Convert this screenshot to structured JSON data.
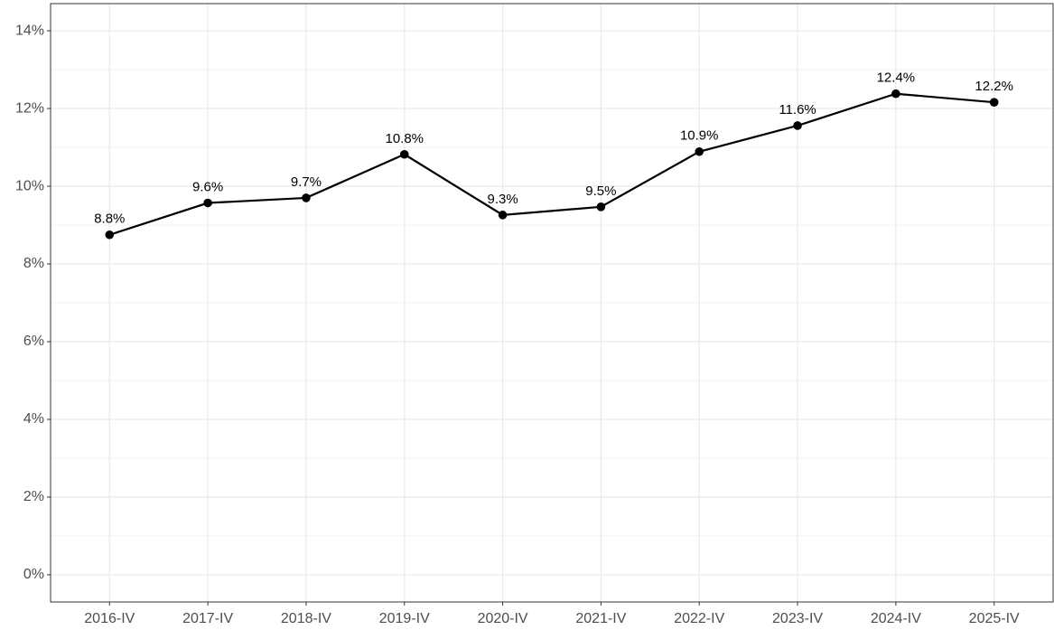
{
  "chart_data": {
    "type": "line",
    "categories": [
      "2016-IV",
      "2017-IV",
      "2018-IV",
      "2019-IV",
      "2020-IV",
      "2021-IV",
      "2022-IV",
      "2023-IV",
      "2024-IV",
      "2025-IV"
    ],
    "values": [
      8.75,
      9.57,
      9.7,
      10.82,
      9.26,
      9.47,
      10.89,
      11.56,
      12.38,
      12.16
    ],
    "value_labels": [
      "8.8%",
      "9.6%",
      "9.7%",
      "10.8%",
      "9.3%",
      "9.5%",
      "10.9%",
      "11.6%",
      "12.4%",
      "12.2%"
    ],
    "color": "#000000",
    "ylim": [
      -0.7,
      14.7
    ],
    "yticks": [
      {
        "value": 0,
        "label": "0%"
      },
      {
        "value": 2,
        "label": "2%"
      },
      {
        "value": 4,
        "label": "4%"
      },
      {
        "value": 6,
        "label": "6%"
      },
      {
        "value": 8,
        "label": "8%"
      },
      {
        "value": 10,
        "label": "10%"
      },
      {
        "value": 12,
        "label": "12%"
      },
      {
        "value": 14,
        "label": "14%"
      }
    ],
    "grid": true
  }
}
